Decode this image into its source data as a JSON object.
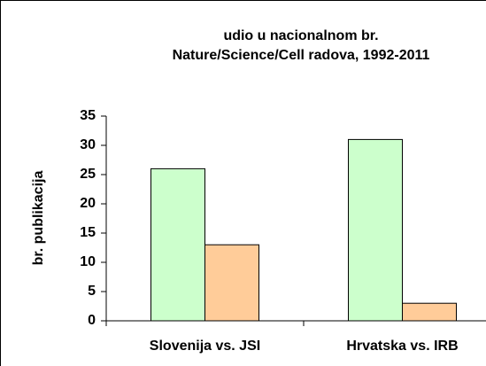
{
  "chart_data": {
    "type": "bar",
    "title": [
      "udio u nacionalnom br.",
      "Nature/Science/Cell radova, 1992-2011"
    ],
    "y_label": "br. publikacija",
    "categories": [
      "Slovenija vs. JSI",
      "Hrvatska vs. IRB"
    ],
    "series": [
      {
        "color": "#ccffcc",
        "values": [
          26,
          31
        ]
      },
      {
        "color": "#ffcc99",
        "values": [
          13,
          3
        ]
      }
    ],
    "ylim": [
      0,
      35
    ],
    "yticks": [
      0,
      5,
      10,
      15,
      20,
      25,
      30,
      35
    ],
    "grid": false
  }
}
